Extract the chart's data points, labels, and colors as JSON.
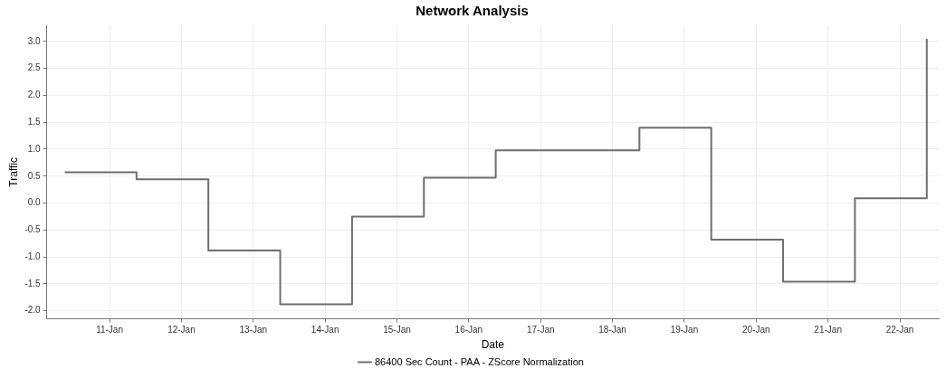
{
  "chart_data": {
    "type": "step",
    "title": "Network Analysis",
    "xlabel": "Date",
    "ylabel": "Traffic",
    "x": [
      "--01-10T09:00",
      "--01-11T09:00",
      "--01-12T09:00",
      "--01-13T09:00",
      "--01-14T09:00",
      "--01-15T09:00",
      "--01-16T09:00",
      "--01-17T09:00",
      "--01-18T09:00",
      "--01-19T09:00",
      "--01-20T09:00",
      "--01-21T09:00",
      "--01-22T09:00"
    ],
    "series": [
      {
        "name": "86400 Sec Count - PAA - ZScore Normalization",
        "color": "#6e6e6e",
        "values": [
          0.57,
          0.44,
          -0.88,
          -1.88,
          -0.25,
          0.47,
          0.98,
          0.98,
          1.4,
          -0.68,
          -1.46,
          0.09,
          3.05
        ]
      }
    ],
    "xlim": [
      "--01-10T03:00",
      "--01-22T13:00"
    ],
    "xticks": [
      {
        "value": "--01-11",
        "label": "11-Jan"
      },
      {
        "value": "--01-12",
        "label": "12-Jan"
      },
      {
        "value": "--01-13",
        "label": "13-Jan"
      },
      {
        "value": "--01-14",
        "label": "14-Jan"
      },
      {
        "value": "--01-15",
        "label": "15-Jan"
      },
      {
        "value": "--01-16",
        "label": "16-Jan"
      },
      {
        "value": "--01-17",
        "label": "17-Jan"
      },
      {
        "value": "--01-18",
        "label": "18-Jan"
      },
      {
        "value": "--01-19",
        "label": "19-Jan"
      },
      {
        "value": "--01-20",
        "label": "20-Jan"
      },
      {
        "value": "--01-21",
        "label": "21-Jan"
      },
      {
        "value": "--01-22",
        "label": "22-Jan"
      }
    ],
    "ylim": [
      -2.15,
      3.3
    ],
    "yticks": [
      {
        "value": -2,
        "label": "-2.0"
      },
      {
        "value": -1.5,
        "label": "-1.5"
      },
      {
        "value": -1,
        "label": "-1.0"
      },
      {
        "value": -0.5,
        "label": "-0.5"
      },
      {
        "value": 0,
        "label": "0.0"
      },
      {
        "value": 0.5,
        "label": "0.5"
      },
      {
        "value": 1,
        "label": "1.0"
      },
      {
        "value": 1.5,
        "label": "1.5"
      },
      {
        "value": 2,
        "label": "2.0"
      },
      {
        "value": 2.5,
        "label": "2.5"
      },
      {
        "value": 3,
        "label": "3.0"
      }
    ],
    "grid": true,
    "legend": "bottom",
    "marker": "none",
    "line_style": "solid"
  }
}
